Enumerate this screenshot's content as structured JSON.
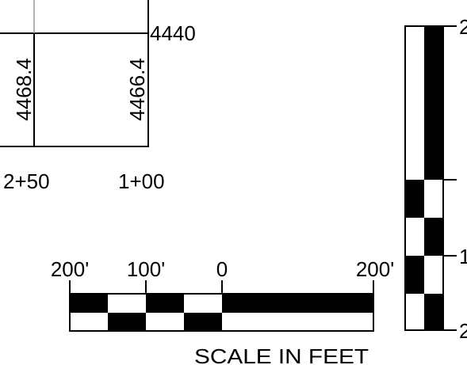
{
  "profile": {
    "elevation_label": "4440",
    "vertical_labels": [
      "4468.4",
      "4466.4"
    ],
    "stations": [
      "2+50",
      "1+00"
    ]
  },
  "scale_bar": {
    "tick_labels": [
      "200'",
      "100'",
      "0",
      "200'"
    ],
    "caption": "SCALE IN FEET"
  },
  "vertical_scale": {
    "partial_labels": [
      "2",
      "1",
      "2"
    ]
  },
  "colors": {
    "ink": "#000000",
    "paper": "#ffffff",
    "faint_line": "#999999"
  }
}
